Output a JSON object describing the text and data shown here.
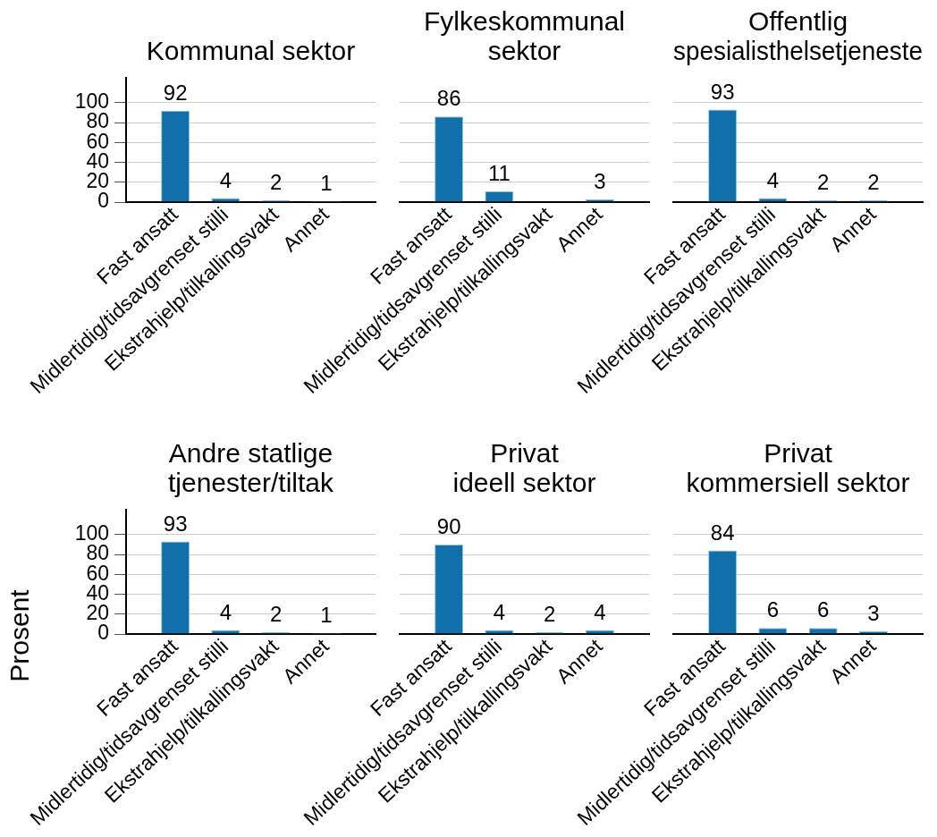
{
  "chart_data": [
    {
      "type": "bar",
      "title": "Kommunal sektor",
      "categories": [
        "Fast ansatt",
        "Midlertidig/tidsavgrenset stilli",
        "Ekstrahjelp/tilkallingsvakt",
        "Annet"
      ],
      "values": [
        92,
        4,
        2,
        1
      ],
      "color": "#1170aa",
      "ylim": [
        0,
        125
      ],
      "yticks": [
        0,
        20,
        40,
        60,
        80,
        100
      ],
      "grid": "y",
      "data_labels": true
    },
    {
      "type": "bar",
      "title": "Fylkeskommunal\nsektor",
      "categories": [
        "Fast ansatt",
        "Midlertidig/tidsavgrenset stilli",
        "Ekstrahjelp/tilkallingsvakt",
        "Annet"
      ],
      "values": [
        86,
        11,
        null,
        3
      ],
      "color": "#1170aa",
      "yticks": [
        0,
        20,
        40,
        60,
        80,
        100
      ],
      "grid": "y",
      "data_labels": true,
      "tick_labels": "x"
    },
    {
      "type": "bar",
      "title": "Offentlig\nspesialisthelsetjeneste",
      "categories": [
        "Fast ansatt",
        "Midlertidig/tidsavgrenset stilli",
        "Ekstrahjelp/tilkallingsvakt",
        "Annet"
      ],
      "values": [
        93,
        4,
        2,
        2
      ],
      "color": "#1170aa",
      "yticks": [
        0,
        20,
        40,
        60,
        80,
        100
      ],
      "grid": "y",
      "data_labels": true,
      "tick_labels": "x"
    },
    {
      "type": "bar",
      "title": "Andre statlige\ntjenester/tiltak",
      "ylabel": "Prosent",
      "categories": [
        "Fast ansatt",
        "Midlertidig/tidsavgrenset stilli",
        "Ekstrahjelp/tilkallingsvakt",
        "Annet"
      ],
      "values": [
        93,
        4,
        2,
        1
      ],
      "color": "#1170aa",
      "ylim": [
        0,
        125
      ],
      "yticks": [
        0,
        20,
        40,
        60,
        80,
        100
      ],
      "grid": "y",
      "data_labels": true
    },
    {
      "type": "bar",
      "title": "Privat\nideell sektor",
      "categories": [
        "Fast ansatt",
        "Midlertidig/tidsavgrenset stilli",
        "Ekstrahjelp/tilkallingsvakt",
        "Annet"
      ],
      "values": [
        90,
        4,
        2,
        4
      ],
      "color": "#1170aa",
      "yticks": [
        0,
        20,
        40,
        60,
        80,
        100
      ],
      "grid": "y",
      "data_labels": true,
      "tick_labels": "x"
    },
    {
      "type": "bar",
      "title": "Privat\nkommersiell sektor",
      "categories": [
        "Fast ansatt",
        "Midlertidig/tidsavgrenset stilli",
        "Ekstrahjelp/tilkallingsvakt",
        "Annet"
      ],
      "values": [
        84,
        6,
        6,
        3
      ],
      "color": "#1170aa",
      "yticks": [
        0,
        20,
        40,
        60,
        80,
        100
      ],
      "grid": "y",
      "data_labels": true,
      "tick_labels": "x"
    }
  ]
}
